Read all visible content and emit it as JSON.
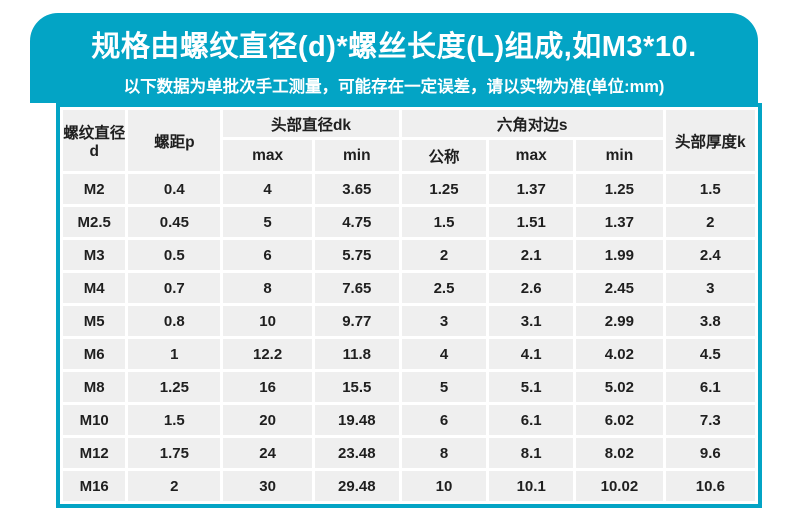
{
  "colors": {
    "teal": "#03a4c5",
    "cell_bg": "#efefef",
    "text_dark": "#1f1f1f",
    "page_bg": "#ffffff",
    "banner_text": "#ffffff"
  },
  "banner": {
    "title": "规格由螺纹直径(d)*螺丝长度(L)组成,如M3*10.",
    "subtitle": "以下数据为单批次手工测量，可能存在一定误差，请以实物为准(单位:mm)"
  },
  "table": {
    "headers": {
      "thread_diameter": "螺纹直径d",
      "pitch": "螺距p",
      "head_diameter_group": "头部直径dk",
      "hex_width_group": "六角对边s",
      "head_thickness": "头部厚度k",
      "dk_max": "max",
      "dk_min": "min",
      "s_nominal": "公称",
      "s_max": "max",
      "s_min": "min"
    },
    "rows": [
      [
        "M2",
        "0.4",
        "4",
        "3.65",
        "1.25",
        "1.37",
        "1.25",
        "1.5"
      ],
      [
        "M2.5",
        "0.45",
        "5",
        "4.75",
        "1.5",
        "1.51",
        "1.37",
        "2"
      ],
      [
        "M3",
        "0.5",
        "6",
        "5.75",
        "2",
        "2.1",
        "1.99",
        "2.4"
      ],
      [
        "M4",
        "0.7",
        "8",
        "7.65",
        "2.5",
        "2.6",
        "2.45",
        "3"
      ],
      [
        "M5",
        "0.8",
        "10",
        "9.77",
        "3",
        "3.1",
        "2.99",
        "3.8"
      ],
      [
        "M6",
        "1",
        "12.2",
        "11.8",
        "4",
        "4.1",
        "4.02",
        "4.5"
      ],
      [
        "M8",
        "1.25",
        "16",
        "15.5",
        "5",
        "5.1",
        "5.02",
        "6.1"
      ],
      [
        "M10",
        "1.5",
        "20",
        "19.48",
        "6",
        "6.1",
        "6.02",
        "7.3"
      ],
      [
        "M12",
        "1.75",
        "24",
        "23.48",
        "8",
        "8.1",
        "8.02",
        "9.6"
      ],
      [
        "M16",
        "2",
        "30",
        "29.48",
        "10",
        "10.1",
        "10.02",
        "10.6"
      ]
    ]
  }
}
